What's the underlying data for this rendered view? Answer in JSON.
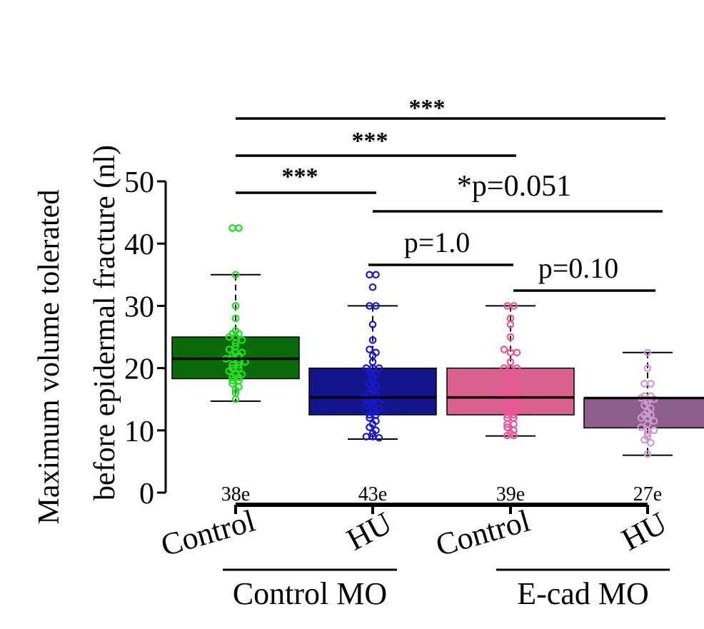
{
  "chart_data": {
    "type": "box",
    "ylabel_line1": "Maximum volume tolerated",
    "ylabel_line2": "before epidermal fracture (nl)",
    "ylim": [
      0,
      50
    ],
    "yticks": [
      "0",
      "10",
      "20",
      "30",
      "40",
      "50"
    ],
    "categories": [
      {
        "label": "Control",
        "n": "38e",
        "color": "#0b6b0b",
        "point_color": "#22dd22",
        "q1": 18.3,
        "median": 21.5,
        "q3": 25.0,
        "whisker_low": 14.7,
        "whisker_high": 35.0,
        "points": [
          42.5,
          42.5,
          35,
          30,
          28,
          26,
          25.5,
          25.5,
          25,
          25,
          24.5,
          24,
          23.5,
          23,
          22.5,
          22.5,
          22,
          22,
          21.5,
          21.5,
          21,
          21,
          20.5,
          20.5,
          20,
          20,
          19.5,
          19,
          19,
          18.5,
          18.5,
          18,
          18,
          17.5,
          17,
          16.5,
          16,
          15
        ]
      },
      {
        "label": "HU",
        "n": "43e",
        "color": "#14148c",
        "point_color": "#1a1acc",
        "q1": 12.5,
        "median": 15.3,
        "q3": 20.0,
        "whisker_low": 8.6,
        "whisker_high": 30.0,
        "points": [
          35,
          35,
          33,
          30,
          30,
          27,
          24.5,
          23,
          22.5,
          22,
          21,
          20,
          20,
          20,
          19.5,
          19,
          18.5,
          18,
          17.5,
          17,
          16.5,
          16,
          15.5,
          15.3,
          15,
          15,
          15,
          14.5,
          14,
          14,
          13.5,
          13,
          12.5,
          12.5,
          12,
          11.5,
          11,
          10.5,
          10,
          9.5,
          9,
          9,
          8.8
        ]
      },
      {
        "label": "Control",
        "n": "39e",
        "color": "#d9608f",
        "point_color": "#ee5599",
        "q1": 12.5,
        "median": 15.3,
        "q3": 20.0,
        "whisker_low": 9.1,
        "whisker_high": 30.0,
        "points": [
          30,
          30,
          28,
          27,
          25,
          23,
          22.5,
          22.5,
          21,
          20,
          20,
          20,
          19,
          18.5,
          18,
          17.5,
          17,
          16.5,
          16,
          15.5,
          15.3,
          15,
          15,
          15,
          14.5,
          14,
          13.5,
          13,
          12.5,
          12.5,
          12,
          12,
          11,
          11,
          10.5,
          10,
          9.5,
          9.2,
          9.2
        ]
      },
      {
        "label": "HU",
        "n": "27e",
        "color": "#8e5f8c",
        "point_color": "#d099d0",
        "q1": 10.4,
        "median": 15.2,
        "q3": 15.2,
        "whisker_low": 6.0,
        "whisker_high": 22.5,
        "points": [
          22.5,
          20,
          17.5,
          17.5,
          15.5,
          15.5,
          15.2,
          15,
          15,
          14.5,
          14,
          13.5,
          13,
          12.5,
          12.5,
          12,
          12,
          11.5,
          11,
          10.5,
          10,
          10,
          9.5,
          9,
          8.5,
          8,
          6.2
        ]
      }
    ],
    "groups": [
      {
        "label": "Control MO",
        "members": [
          0,
          1
        ]
      },
      {
        "label": "E-cad MO",
        "members": [
          2,
          3
        ]
      }
    ],
    "comparisons": [
      {
        "label": "***",
        "from": 0,
        "to": 3,
        "level": 0
      },
      {
        "label": "***",
        "from": 0,
        "to": 2,
        "level": 1
      },
      {
        "label": "***",
        "from": 0,
        "to": 1,
        "level": 2
      },
      {
        "label": "*p=0.051",
        "from": 1,
        "to": 3,
        "level": 3
      },
      {
        "label": "p=1.0",
        "from": 1,
        "to": 2,
        "level": 4
      },
      {
        "label": "p=0.10",
        "from": 2,
        "to": 3,
        "level": 5
      }
    ]
  }
}
